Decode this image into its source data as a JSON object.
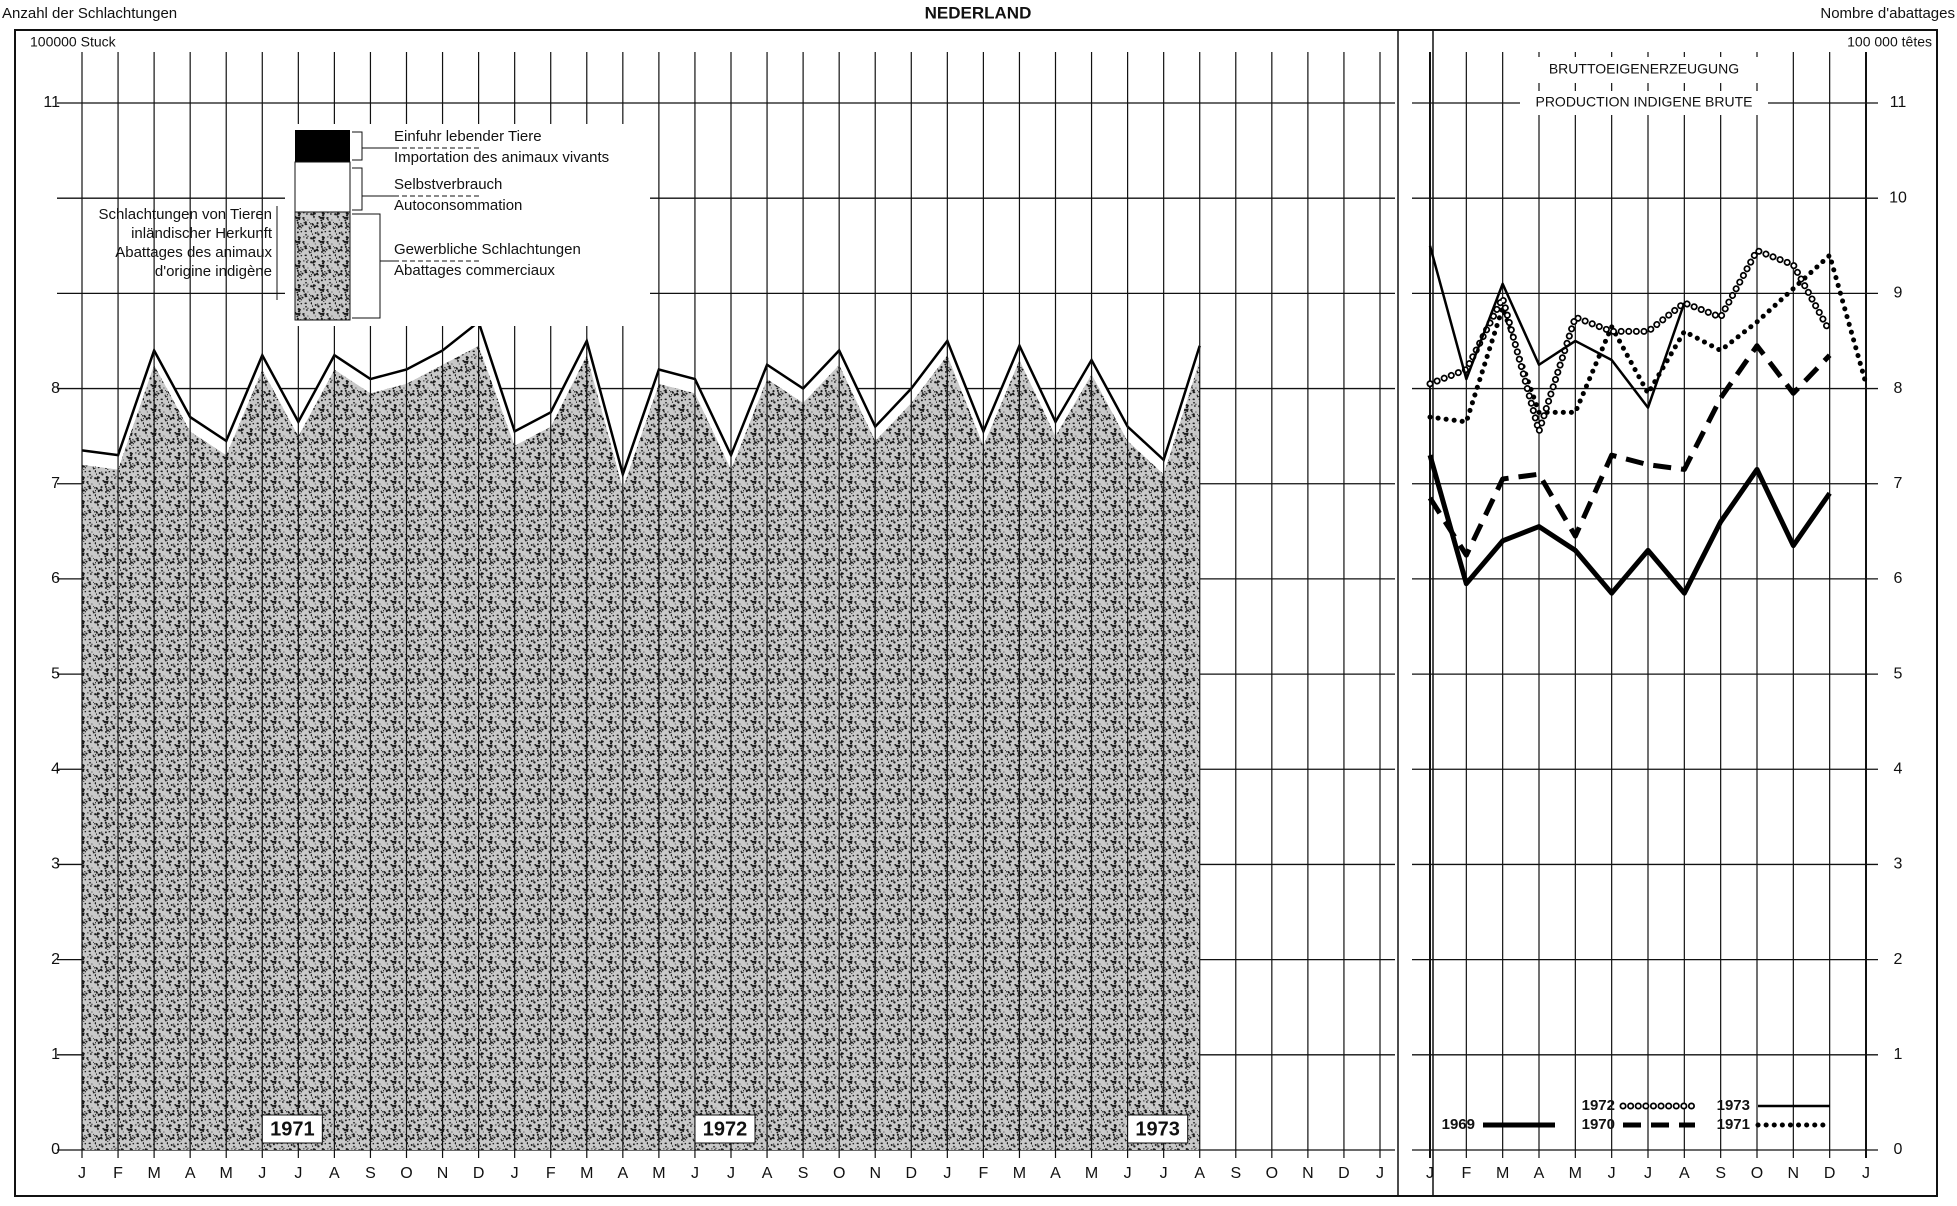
{
  "header": {
    "left": "Anzahl der Schlachtungen",
    "title": "NEDERLAND",
    "right": "Nombre d'abattages"
  },
  "chart_data": [
    {
      "type": "area",
      "stacked": true,
      "unit_label": "100000 Stuck",
      "categories": [
        "J",
        "F",
        "M",
        "A",
        "M",
        "J",
        "J",
        "A",
        "S",
        "O",
        "N",
        "D",
        "J",
        "F",
        "M",
        "A",
        "M",
        "J",
        "J",
        "A",
        "S",
        "O",
        "N",
        "D",
        "J",
        "F",
        "M",
        "A",
        "M",
        "J",
        "J",
        "A",
        "S",
        "O",
        "N",
        "D",
        "J"
      ],
      "series": [
        {
          "name": "Gewerbliche Schlachtungen",
          "name_fr": "Abattages commerciaux",
          "fill": "stipple",
          "values": [
            7.2,
            7.15,
            8.25,
            7.55,
            7.3,
            8.2,
            7.5,
            8.2,
            7.95,
            8.05,
            8.25,
            8.45,
            7.4,
            7.6,
            8.35,
            6.95,
            8.05,
            7.95,
            7.15,
            8.1,
            7.85,
            8.25,
            7.45,
            7.85,
            8.35,
            7.4,
            8.3,
            7.5,
            8.15,
            7.45,
            7.1,
            8.3,
            null,
            null,
            null,
            null,
            null
          ]
        },
        {
          "name": "Selbstverbrauch",
          "name_fr": "Autoconsommation",
          "color": "#ffffff",
          "values": [
            0.15,
            0.15,
            0.15,
            0.15,
            0.15,
            0.15,
            0.15,
            0.15,
            0.15,
            0.15,
            0.15,
            0.25,
            0.15,
            0.15,
            0.15,
            0.15,
            0.15,
            0.15,
            0.15,
            0.15,
            0.15,
            0.15,
            0.15,
            0.15,
            0.15,
            0.15,
            0.15,
            0.15,
            0.15,
            0.15,
            0.15,
            0.15,
            null,
            null,
            null,
            null,
            null
          ]
        }
      ],
      "legend_extra": {
        "name": "Einfuhr lebender Tiere",
        "name_fr": "Importation des animaux vivants",
        "color": "#000000"
      },
      "legend_group": [
        "Schlachtungen von Tieren",
        "inländischer Herkunft",
        "Abattages des animaux",
        "d'origine indigène"
      ],
      "annotations": [
        "1971",
        "1972",
        "1973"
      ],
      "ylim": [
        0,
        11
      ],
      "yticks": [
        0,
        1,
        2,
        3,
        4,
        5,
        6,
        7,
        8,
        9,
        10,
        11
      ],
      "ytick_labels_shown": [
        0,
        1,
        2,
        3,
        4,
        5,
        6,
        7,
        8,
        11
      ],
      "grid": true
    },
    {
      "type": "line",
      "title": "BRUTTOEIGENERZEUGUNG",
      "subtitle": "PRODUCTION INDIGENE BRUTE",
      "unit_label": "100 000 têtes",
      "categories": [
        "J",
        "F",
        "M",
        "A",
        "M",
        "J",
        "J",
        "A",
        "S",
        "O",
        "N",
        "D",
        "J"
      ],
      "series": [
        {
          "name": "1969",
          "style": "thick",
          "values": [
            7.3,
            5.95,
            6.4,
            6.55,
            6.3,
            5.85,
            6.3,
            5.85,
            6.6,
            7.15,
            6.35,
            6.9,
            null
          ]
        },
        {
          "name": "1970",
          "style": "dashed",
          "values": [
            6.85,
            6.25,
            7.05,
            7.1,
            6.45,
            7.3,
            7.2,
            7.15,
            7.9,
            8.45,
            7.95,
            8.35,
            null
          ]
        },
        {
          "name": "1971",
          "style": "dotted",
          "values": [
            7.7,
            7.65,
            8.85,
            7.75,
            7.75,
            8.65,
            7.95,
            8.6,
            8.4,
            8.7,
            9.05,
            9.4,
            8.05
          ]
        },
        {
          "name": "1972",
          "style": "rings",
          "values": [
            8.05,
            8.2,
            8.95,
            7.55,
            8.75,
            8.6,
            8.6,
            8.9,
            8.75,
            9.45,
            9.3,
            8.6,
            null
          ]
        },
        {
          "name": "1973",
          "style": "thin",
          "values": [
            9.5,
            8.1,
            9.1,
            8.25,
            8.5,
            8.3,
            7.8,
            8.9,
            null,
            null,
            null,
            null,
            null
          ]
        }
      ],
      "ylim": [
        0,
        11
      ],
      "yticks": [
        0,
        1,
        2,
        3,
        4,
        5,
        6,
        7,
        8,
        9,
        10,
        11
      ],
      "grid": true
    }
  ]
}
